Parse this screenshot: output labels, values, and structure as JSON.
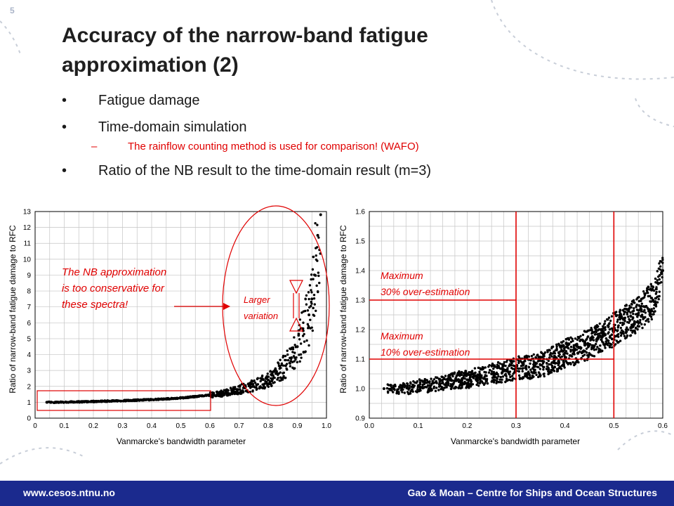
{
  "slide": {
    "number": "5",
    "title_line1": "Accuracy of the narrow-band fatigue",
    "title_line2": "approximation (2)",
    "bullets": [
      "Fatigue damage",
      "Time-domain simulation"
    ],
    "sub_bullet": "The rainflow counting method is used for comparison! (WAFO)",
    "bullet3": "Ratio of the NB result to the time-domain result (m=3)"
  },
  "footer": {
    "left": "www.cesos.ntnu.no",
    "right": "Gao & Moan – Centre for Ships and Ocean Structures"
  },
  "annotations": {
    "nb_line1": "The NB approximation",
    "nb_line2": "is too conservative for",
    "nb_line3": "these spectra!",
    "larger_line1": "Larger",
    "larger_line2": "variation",
    "max30_line1": "Maximum",
    "max30_line2": "30% over-estimation",
    "max10_line1": "Maximum",
    "max10_line2": "10% over-estimation"
  },
  "colors": {
    "accent": "#e00000",
    "footer": "#1b2a8e",
    "grid": "#c0c0c0"
  },
  "chart_data": [
    {
      "type": "scatter",
      "title": "",
      "xlabel": "Vanmarcke's bandwidth parameter",
      "ylabel": "Ratio of narrow-band fatigue damage to RFC",
      "xlim": [
        0,
        1.0
      ],
      "ylim": [
        0,
        13
      ],
      "xticks": [
        "0",
        "0.1",
        "0.2",
        "0.3",
        "0.4",
        "0.5",
        "0.6",
        "0.7",
        "0.8",
        "0.9",
        "1.0"
      ],
      "yticks": [
        "0",
        "1",
        "2",
        "3",
        "4",
        "5",
        "6",
        "7",
        "8",
        "9",
        "10",
        "11",
        "12",
        "13"
      ],
      "grid": true,
      "series": [
        {
          "x": [
            0.04,
            0.08,
            0.12,
            0.16,
            0.2,
            0.24,
            0.28,
            0.32,
            0.36,
            0.4,
            0.44,
            0.48,
            0.52,
            0.56,
            0.6,
            0.64,
            0.68,
            0.72,
            0.76,
            0.8,
            0.83,
            0.86,
            0.88,
            0.9,
            0.92,
            0.94,
            0.95,
            0.96,
            0.97,
            0.98
          ],
          "y": [
            1.0,
            1.0,
            1.02,
            1.03,
            1.05,
            1.07,
            1.09,
            1.11,
            1.14,
            1.17,
            1.2,
            1.25,
            1.3,
            1.38,
            1.45,
            1.55,
            1.7,
            1.9,
            2.1,
            2.4,
            2.8,
            3.3,
            3.8,
            4.5,
            5.5,
            6.5,
            7.5,
            9.0,
            11.5,
            12.8
          ]
        }
      ]
    },
    {
      "type": "scatter",
      "title": "",
      "xlabel": "Vanmarcke's bandwidth parameter",
      "ylabel": "Ratio of narrow-band fatigue damage to RFC",
      "xlim": [
        0,
        0.6
      ],
      "ylim": [
        0.9,
        1.6
      ],
      "xticks": [
        "0.0",
        "0.1",
        "0.2",
        "0.3",
        "0.4",
        "0.5",
        "0.6"
      ],
      "yticks": [
        "0.9",
        "1.0",
        "1.1",
        "1.2",
        "1.3",
        "1.4",
        "1.5",
        "1.6"
      ],
      "grid": true,
      "reference_lines": {
        "x": [
          0.3,
          0.5
        ],
        "y": [
          1.1,
          1.3
        ]
      },
      "series": [
        {
          "x": [
            0.03,
            0.05,
            0.08,
            0.1,
            0.12,
            0.15,
            0.18,
            0.2,
            0.22,
            0.25,
            0.28,
            0.3,
            0.32,
            0.35,
            0.38,
            0.4,
            0.42,
            0.45,
            0.48,
            0.5,
            0.52,
            0.55,
            0.58,
            0.6
          ],
          "y": [
            1.0,
            1.0,
            1.0,
            1.01,
            1.01,
            1.02,
            1.03,
            1.03,
            1.04,
            1.05,
            1.06,
            1.07,
            1.07,
            1.08,
            1.1,
            1.12,
            1.13,
            1.15,
            1.18,
            1.2,
            1.22,
            1.25,
            1.3,
            1.4
          ]
        }
      ]
    }
  ]
}
